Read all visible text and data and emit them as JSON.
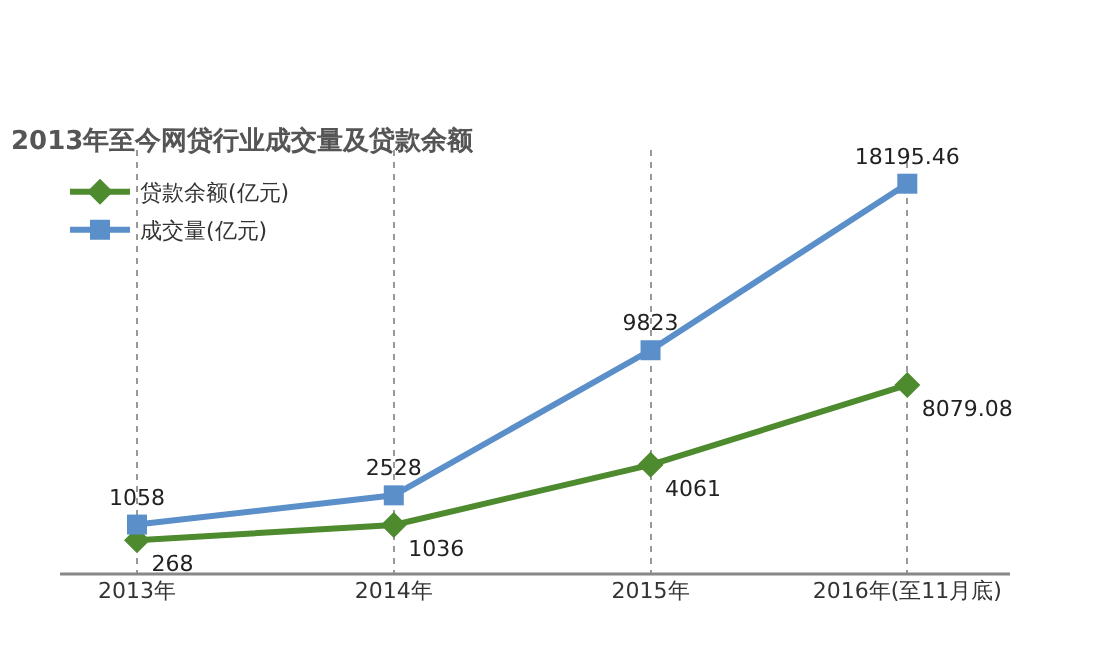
{
  "chart_data": {
    "type": "line",
    "title": "2013年至今网贷行业成交量及贷款余额",
    "categories": [
      "2013年",
      "2014年",
      "2015年",
      "2016年(至11月底)"
    ],
    "series": [
      {
        "name": "贷款余额(亿元)",
        "color": "#4e8a2e",
        "values": [
          268,
          1036,
          4061,
          8079.08
        ],
        "marker": "diamond"
      },
      {
        "name": "成交量(亿元)",
        "color": "#5b8fc9",
        "values": [
          1058,
          2528,
          9823,
          18195.46
        ],
        "marker": "square"
      }
    ],
    "data_labels": true,
    "grid": "x",
    "legend": "top left",
    "line_style": "solid"
  }
}
